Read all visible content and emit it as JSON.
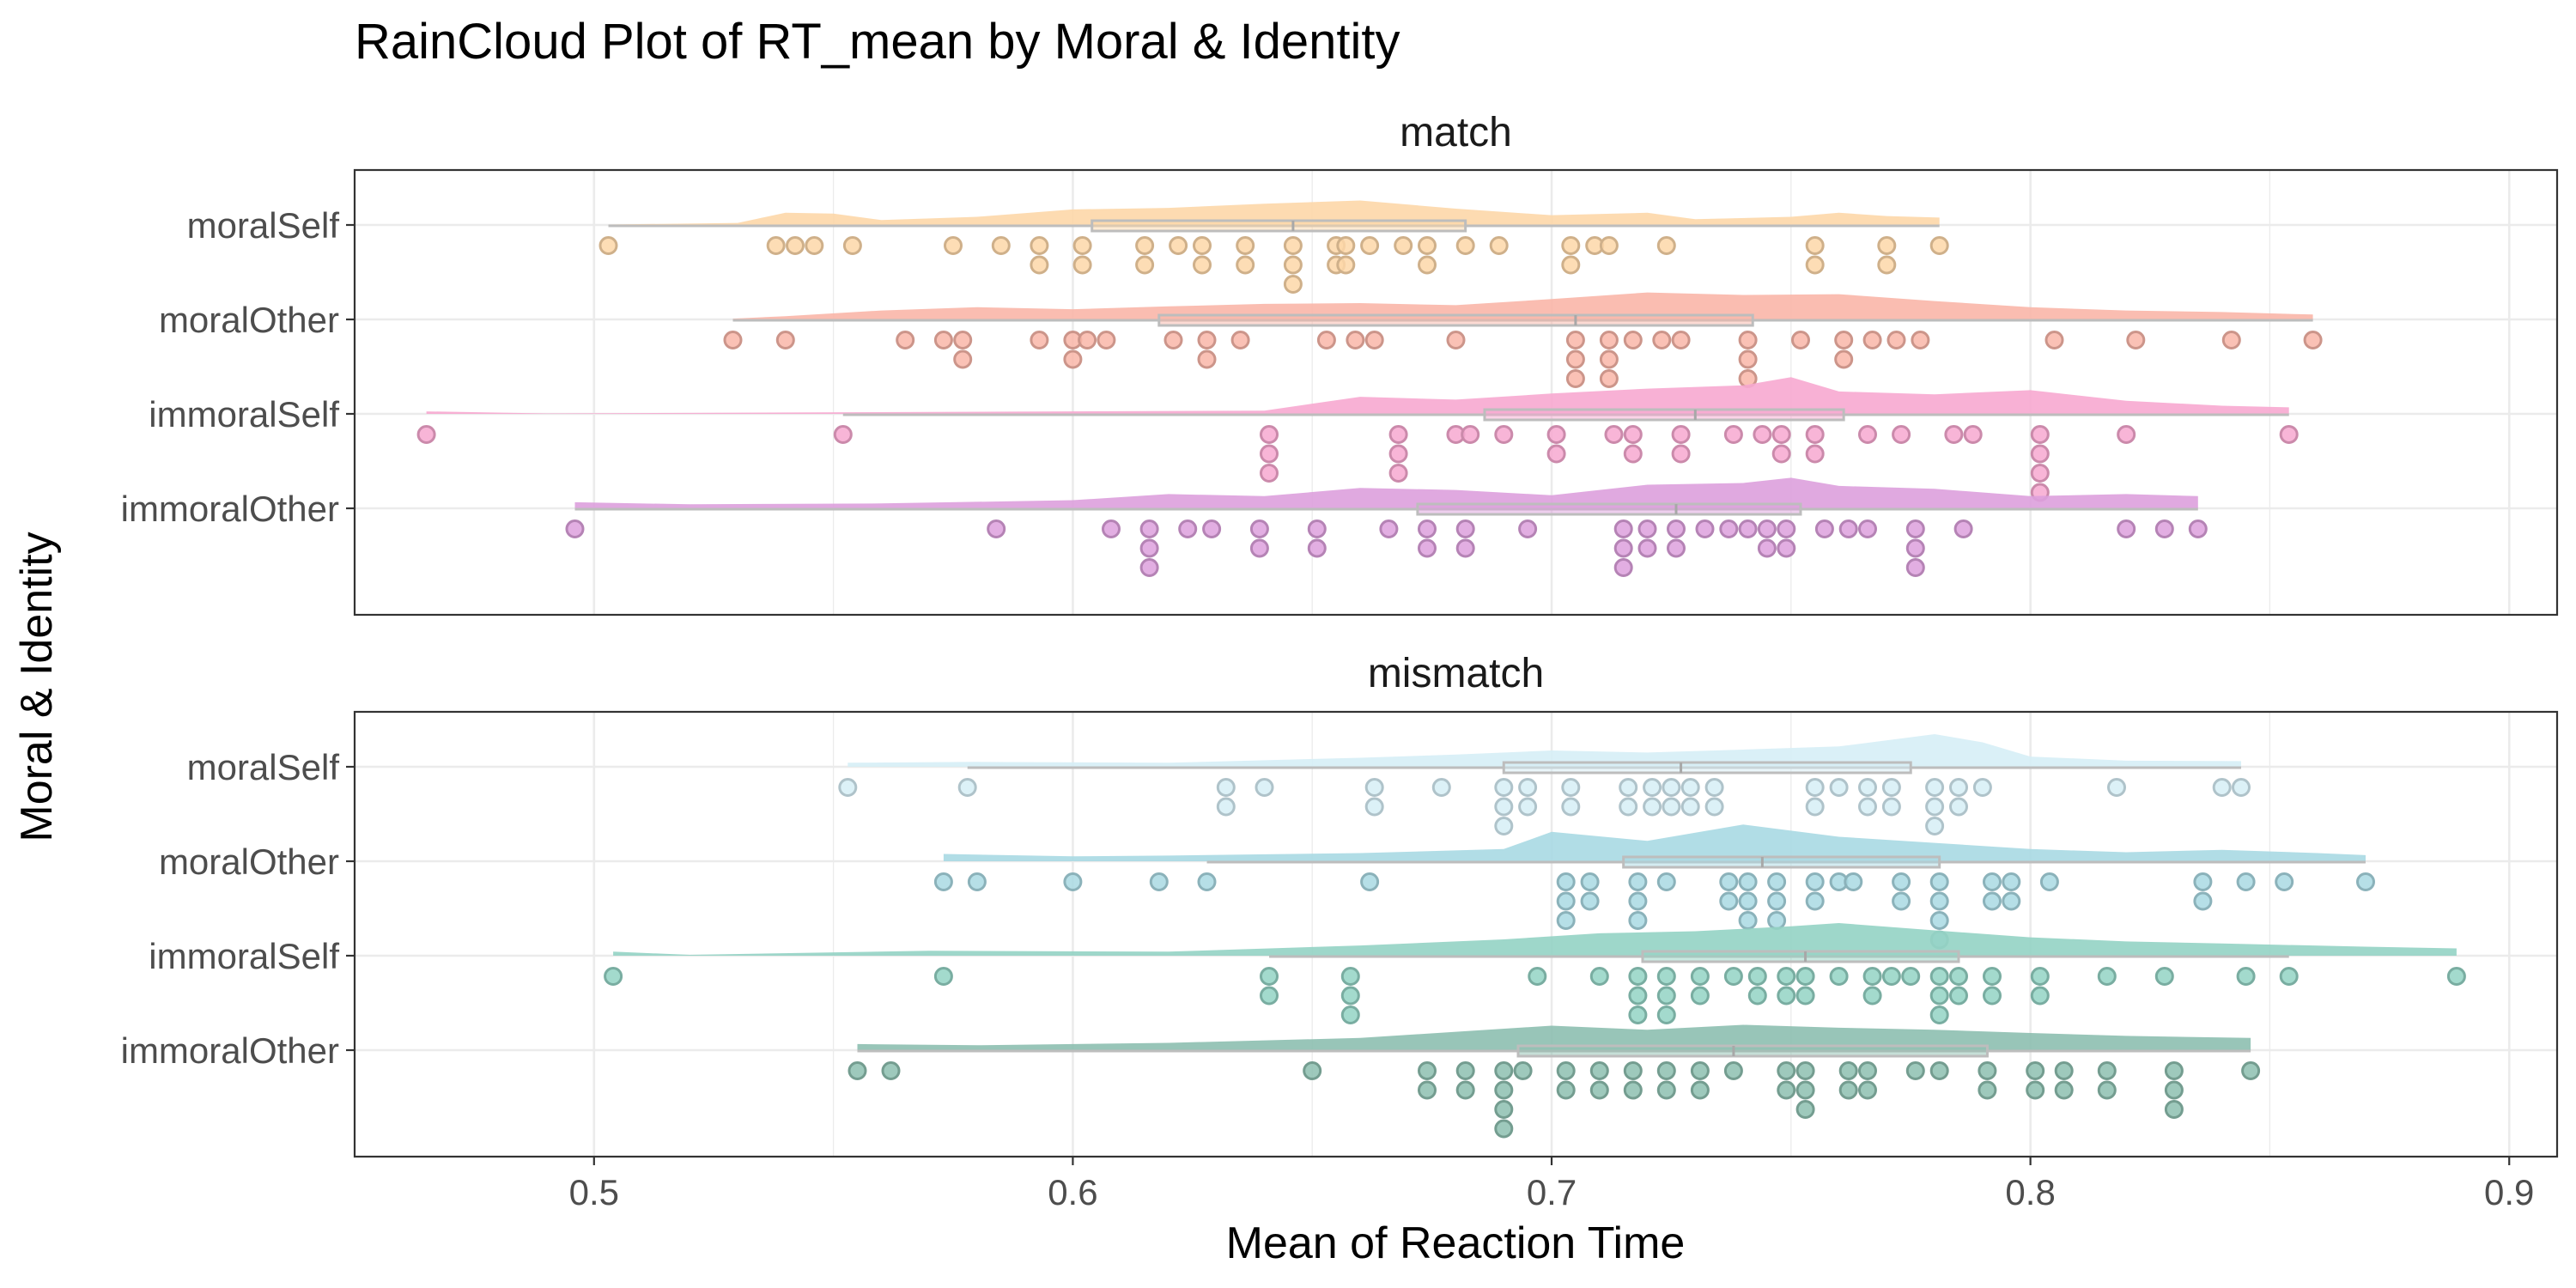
{
  "chart_data": {
    "type": "raincloud",
    "title": "RainCloud Plot of RT_mean by Moral & Identity",
    "xlabel": "Mean of Reaction Time",
    "ylabel": "Moral & Identity",
    "xlim": [
      0.45,
      0.91
    ],
    "xticks": [
      "0.5",
      "0.6",
      "0.7",
      "0.8",
      "0.9"
    ],
    "grid": true,
    "legend": "none",
    "panels": [
      {
        "label": "match",
        "groups": [
          {
            "name": "moralSelf",
            "color": "#FDD7A8",
            "box": {
              "min": 0.503,
              "q1": 0.604,
              "median": 0.646,
              "q3": 0.682,
              "max": 0.781
            },
            "density": [
              [
                0.503,
                0.01
              ],
              [
                0.53,
                0.05
              ],
              [
                0.54,
                0.3
              ],
              [
                0.55,
                0.28
              ],
              [
                0.56,
                0.12
              ],
              [
                0.58,
                0.2
              ],
              [
                0.6,
                0.38
              ],
              [
                0.62,
                0.42
              ],
              [
                0.64,
                0.52
              ],
              [
                0.66,
                0.6
              ],
              [
                0.68,
                0.4
              ],
              [
                0.7,
                0.24
              ],
              [
                0.72,
                0.3
              ],
              [
                0.73,
                0.14
              ],
              [
                0.75,
                0.2
              ],
              [
                0.76,
                0.3
              ],
              [
                0.77,
                0.22
              ],
              [
                0.781,
                0.18
              ]
            ],
            "points": [
              0.503,
              0.538,
              0.542,
              0.546,
              0.554,
              0.575,
              0.585,
              0.593,
              0.593,
              0.602,
              0.602,
              0.615,
              0.615,
              0.622,
              0.627,
              0.627,
              0.636,
              0.636,
              0.646,
              0.646,
              0.646,
              0.655,
              0.655,
              0.657,
              0.657,
              0.662,
              0.669,
              0.674,
              0.674,
              0.682,
              0.689,
              0.704,
              0.704,
              0.709,
              0.712,
              0.724,
              0.755,
              0.755,
              0.77,
              0.77,
              0.781
            ]
          },
          {
            "name": "moralOther",
            "color": "#F9B6A8",
            "box": {
              "min": 0.529,
              "q1": 0.618,
              "median": 0.705,
              "q3": 0.742,
              "max": 0.859
            },
            "density": [
              [
                0.529,
                0.02
              ],
              [
                0.54,
                0.08
              ],
              [
                0.56,
                0.22
              ],
              [
                0.58,
                0.3
              ],
              [
                0.6,
                0.25
              ],
              [
                0.62,
                0.32
              ],
              [
                0.64,
                0.38
              ],
              [
                0.66,
                0.4
              ],
              [
                0.68,
                0.35
              ],
              [
                0.7,
                0.5
              ],
              [
                0.72,
                0.66
              ],
              [
                0.74,
                0.6
              ],
              [
                0.76,
                0.62
              ],
              [
                0.78,
                0.45
              ],
              [
                0.8,
                0.3
              ],
              [
                0.82,
                0.22
              ],
              [
                0.84,
                0.18
              ],
              [
                0.859,
                0.12
              ]
            ],
            "points": [
              0.529,
              0.54,
              0.565,
              0.573,
              0.577,
              0.577,
              0.593,
              0.6,
              0.6,
              0.603,
              0.607,
              0.621,
              0.628,
              0.628,
              0.635,
              0.653,
              0.659,
              0.663,
              0.68,
              0.705,
              0.705,
              0.705,
              0.712,
              0.712,
              0.712,
              0.717,
              0.723,
              0.727,
              0.741,
              0.741,
              0.741,
              0.752,
              0.761,
              0.761,
              0.767,
              0.772,
              0.777,
              0.805,
              0.822,
              0.842,
              0.859
            ]
          },
          {
            "name": "immoralSelf",
            "color": "#F7A8D0",
            "box": {
              "min": 0.552,
              "q1": 0.686,
              "median": 0.73,
              "q3": 0.761,
              "max": 0.854
            },
            "density": [
              [
                0.465,
                0.06
              ],
              [
                0.49,
                0.01
              ],
              [
                0.64,
                0.08
              ],
              [
                0.66,
                0.42
              ],
              [
                0.68,
                0.35
              ],
              [
                0.7,
                0.5
              ],
              [
                0.72,
                0.62
              ],
              [
                0.74,
                0.7
              ],
              [
                0.75,
                0.9
              ],
              [
                0.76,
                0.55
              ],
              [
                0.78,
                0.48
              ],
              [
                0.8,
                0.58
              ],
              [
                0.82,
                0.32
              ],
              [
                0.84,
                0.2
              ],
              [
                0.854,
                0.16
              ]
            ],
            "points": [
              0.465,
              0.552,
              0.641,
              0.641,
              0.641,
              0.668,
              0.668,
              0.668,
              0.68,
              0.683,
              0.69,
              0.701,
              0.701,
              0.713,
              0.717,
              0.717,
              0.727,
              0.727,
              0.738,
              0.744,
              0.748,
              0.748,
              0.755,
              0.755,
              0.766,
              0.773,
              0.784,
              0.788,
              0.802,
              0.802,
              0.802,
              0.802,
              0.82,
              0.854
            ]
          },
          {
            "name": "immoralOther",
            "color": "#DDA0DD",
            "box": {
              "min": 0.496,
              "q1": 0.672,
              "median": 0.726,
              "q3": 0.752,
              "max": 0.835
            },
            "density": [
              [
                0.496,
                0.15
              ],
              [
                0.52,
                0.1
              ],
              [
                0.56,
                0.12
              ],
              [
                0.6,
                0.2
              ],
              [
                0.62,
                0.35
              ],
              [
                0.64,
                0.3
              ],
              [
                0.66,
                0.5
              ],
              [
                0.68,
                0.45
              ],
              [
                0.7,
                0.32
              ],
              [
                0.72,
                0.58
              ],
              [
                0.74,
                0.62
              ],
              [
                0.75,
                0.75
              ],
              [
                0.76,
                0.55
              ],
              [
                0.78,
                0.48
              ],
              [
                0.8,
                0.3
              ],
              [
                0.82,
                0.35
              ],
              [
                0.835,
                0.3
              ]
            ],
            "points": [
              0.496,
              0.584,
              0.608,
              0.616,
              0.616,
              0.616,
              0.624,
              0.629,
              0.639,
              0.639,
              0.651,
              0.651,
              0.666,
              0.674,
              0.674,
              0.682,
              0.682,
              0.695,
              0.715,
              0.715,
              0.715,
              0.72,
              0.72,
              0.726,
              0.726,
              0.732,
              0.737,
              0.741,
              0.745,
              0.745,
              0.749,
              0.749,
              0.757,
              0.762,
              0.766,
              0.776,
              0.776,
              0.776,
              0.786,
              0.82,
              0.828,
              0.835
            ]
          }
        ]
      },
      {
        "label": "mismatch",
        "groups": [
          {
            "name": "moralSelf",
            "color": "#D6EEF6",
            "box": {
              "min": 0.578,
              "q1": 0.69,
              "median": 0.727,
              "q3": 0.775,
              "max": 0.844
            },
            "density": [
              [
                0.553,
                0.1
              ],
              [
                0.58,
                0.12
              ],
              [
                0.62,
                0.1
              ],
              [
                0.66,
                0.22
              ],
              [
                0.68,
                0.3
              ],
              [
                0.7,
                0.4
              ],
              [
                0.72,
                0.35
              ],
              [
                0.74,
                0.42
              ],
              [
                0.76,
                0.5
              ],
              [
                0.78,
                0.8
              ],
              [
                0.79,
                0.6
              ],
              [
                0.8,
                0.25
              ],
              [
                0.82,
                0.15
              ],
              [
                0.844,
                0.14
              ]
            ],
            "points": [
              0.553,
              0.578,
              0.632,
              0.632,
              0.64,
              0.663,
              0.663,
              0.677,
              0.69,
              0.69,
              0.69,
              0.695,
              0.695,
              0.704,
              0.704,
              0.716,
              0.716,
              0.721,
              0.721,
              0.725,
              0.725,
              0.729,
              0.729,
              0.734,
              0.734,
              0.755,
              0.755,
              0.76,
              0.766,
              0.766,
              0.771,
              0.771,
              0.78,
              0.78,
              0.78,
              0.785,
              0.785,
              0.79,
              0.818,
              0.84,
              0.844
            ]
          },
          {
            "name": "moralOther",
            "color": "#A9D9E3",
            "box": {
              "min": 0.628,
              "q1": 0.715,
              "median": 0.744,
              "q3": 0.781,
              "max": 0.87
            },
            "density": [
              [
                0.573,
                0.18
              ],
              [
                0.6,
                0.12
              ],
              [
                0.62,
                0.14
              ],
              [
                0.66,
                0.2
              ],
              [
                0.69,
                0.3
              ],
              [
                0.7,
                0.72
              ],
              [
                0.72,
                0.5
              ],
              [
                0.74,
                0.9
              ],
              [
                0.76,
                0.6
              ],
              [
                0.78,
                0.45
              ],
              [
                0.8,
                0.3
              ],
              [
                0.82,
                0.22
              ],
              [
                0.84,
                0.28
              ],
              [
                0.86,
                0.2
              ],
              [
                0.87,
                0.15
              ]
            ],
            "points": [
              0.573,
              0.58,
              0.6,
              0.618,
              0.628,
              0.662,
              0.703,
              0.703,
              0.703,
              0.708,
              0.708,
              0.718,
              0.718,
              0.718,
              0.724,
              0.737,
              0.737,
              0.741,
              0.741,
              0.741,
              0.747,
              0.747,
              0.747,
              0.755,
              0.755,
              0.76,
              0.763,
              0.773,
              0.773,
              0.781,
              0.781,
              0.781,
              0.781,
              0.792,
              0.792,
              0.796,
              0.796,
              0.804,
              0.836,
              0.836,
              0.845,
              0.853,
              0.87
            ]
          },
          {
            "name": "immoralSelf",
            "color": "#93D3C4",
            "box": {
              "min": 0.641,
              "q1": 0.719,
              "median": 0.753,
              "q3": 0.785,
              "max": 0.854
            },
            "density": [
              [
                0.504,
                0.1
              ],
              [
                0.52,
                0.02
              ],
              [
                0.57,
                0.12
              ],
              [
                0.62,
                0.1
              ],
              [
                0.66,
                0.25
              ],
              [
                0.69,
                0.4
              ],
              [
                0.71,
                0.55
              ],
              [
                0.73,
                0.6
              ],
              [
                0.75,
                0.72
              ],
              [
                0.76,
                0.8
              ],
              [
                0.78,
                0.62
              ],
              [
                0.8,
                0.45
              ],
              [
                0.82,
                0.35
              ],
              [
                0.84,
                0.3
              ],
              [
                0.87,
                0.22
              ],
              [
                0.889,
                0.18
              ]
            ],
            "points": [
              0.504,
              0.573,
              0.641,
              0.641,
              0.658,
              0.658,
              0.658,
              0.697,
              0.71,
              0.718,
              0.718,
              0.718,
              0.724,
              0.724,
              0.724,
              0.731,
              0.731,
              0.738,
              0.743,
              0.743,
              0.749,
              0.749,
              0.753,
              0.753,
              0.76,
              0.767,
              0.767,
              0.771,
              0.775,
              0.781,
              0.781,
              0.781,
              0.785,
              0.785,
              0.792,
              0.792,
              0.802,
              0.802,
              0.816,
              0.828,
              0.845,
              0.854,
              0.889
            ]
          },
          {
            "name": "immoralOther",
            "color": "#8DBFB0",
            "box": {
              "min": 0.555,
              "q1": 0.693,
              "median": 0.738,
              "q3": 0.791,
              "max": 0.846
            },
            "density": [
              [
                0.555,
                0.15
              ],
              [
                0.58,
                0.12
              ],
              [
                0.62,
                0.18
              ],
              [
                0.66,
                0.3
              ],
              [
                0.68,
                0.45
              ],
              [
                0.7,
                0.6
              ],
              [
                0.72,
                0.5
              ],
              [
                0.74,
                0.62
              ],
              [
                0.76,
                0.55
              ],
              [
                0.78,
                0.5
              ],
              [
                0.8,
                0.42
              ],
              [
                0.82,
                0.35
              ],
              [
                0.846,
                0.3
              ]
            ],
            "points": [
              0.555,
              0.562,
              0.65,
              0.674,
              0.674,
              0.682,
              0.682,
              0.69,
              0.69,
              0.69,
              0.69,
              0.694,
              0.703,
              0.703,
              0.71,
              0.71,
              0.717,
              0.717,
              0.724,
              0.724,
              0.731,
              0.731,
              0.738,
              0.749,
              0.749,
              0.753,
              0.753,
              0.753,
              0.762,
              0.762,
              0.766,
              0.766,
              0.776,
              0.781,
              0.791,
              0.791,
              0.801,
              0.801,
              0.807,
              0.807,
              0.816,
              0.816,
              0.83,
              0.83,
              0.83,
              0.846
            ]
          }
        ]
      }
    ]
  }
}
